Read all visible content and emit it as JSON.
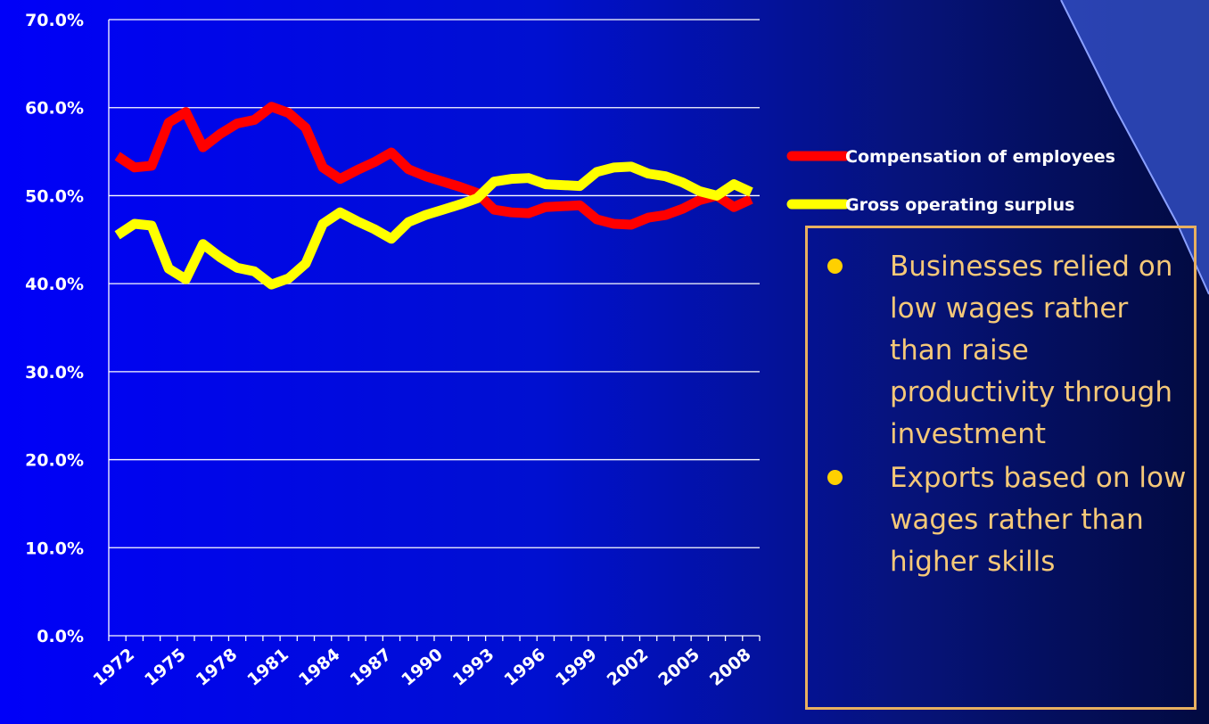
{
  "chart_data": {
    "type": "line",
    "categories": [
      "1972",
      null,
      null,
      "1975",
      null,
      null,
      "1978",
      null,
      null,
      "1981",
      null,
      null,
      "1984",
      null,
      null,
      "1987",
      null,
      null,
      "1990",
      null,
      null,
      "1993",
      null,
      null,
      "1996",
      null,
      null,
      "1999",
      null,
      null,
      "2002",
      null,
      null,
      "2005",
      null,
      null,
      "2008",
      null
    ],
    "series": [
      {
        "name": "Compensation of employees",
        "color": "#ff0000",
        "values": [
          54.5,
          53.2,
          53.4,
          58.3,
          59.5,
          55.5,
          57.0,
          58.2,
          58.6,
          60.1,
          59.4,
          57.7,
          53.2,
          51.9,
          52.9,
          53.8,
          54.9,
          53.0,
          52.2,
          51.6,
          51.0,
          50.3,
          48.4,
          48.1,
          48.0,
          48.7,
          48.8,
          48.9,
          47.3,
          46.8,
          46.7,
          47.5,
          47.8,
          48.5,
          49.5,
          50.0,
          48.7,
          49.6
        ]
      },
      {
        "name": "Gross operating surplus",
        "color": "#ffff00",
        "values": [
          45.5,
          46.8,
          46.6,
          41.7,
          40.5,
          44.5,
          43.0,
          41.8,
          41.4,
          39.9,
          40.6,
          42.3,
          46.8,
          48.1,
          47.1,
          46.2,
          45.1,
          47.0,
          47.8,
          48.4,
          49.0,
          49.7,
          51.6,
          51.9,
          52.0,
          51.3,
          51.2,
          51.1,
          52.7,
          53.2,
          53.3,
          52.5,
          52.2,
          51.5,
          50.5,
          50.0,
          51.3,
          50.4
        ]
      }
    ],
    "ylim": [
      0,
      70
    ],
    "yticks": [
      {
        "value": 0,
        "label": "0.0%"
      },
      {
        "value": 10,
        "label": "10.0%"
      },
      {
        "value": 20,
        "label": "20.0%"
      },
      {
        "value": 30,
        "label": "30.0%"
      },
      {
        "value": 40,
        "label": "40.0%"
      },
      {
        "value": 50,
        "label": "50.0%"
      },
      {
        "value": 60,
        "label": "60.0%"
      },
      {
        "value": 70,
        "label": "70.0%"
      }
    ],
    "grid": true
  },
  "text_box": {
    "bullets": [
      "Businesses relied on low wages rather than raise productivity through investment",
      "Exports based on low wages rather than higher skills"
    ]
  }
}
